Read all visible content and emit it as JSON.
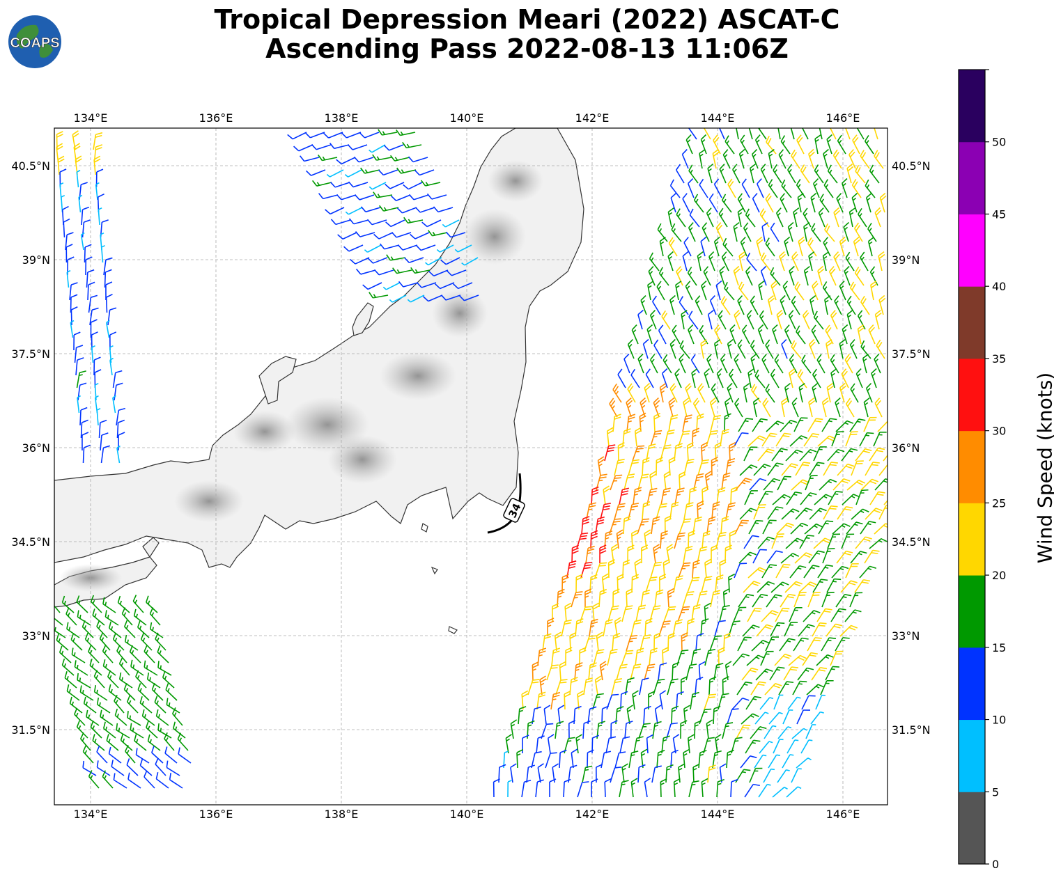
{
  "title_line1": "Tropical Depression Meari (2022) ASCAT-C",
  "title_line2": "Ascending Pass 2022-08-13 11:06Z",
  "logo_text": "COAPS",
  "lon_ticks": [
    "134°E",
    "136°E",
    "138°E",
    "140°E",
    "142°E",
    "144°E",
    "146°E"
  ],
  "lat_ticks": [
    "40.5°N",
    "39°N",
    "37.5°N",
    "36°N",
    "34.5°N",
    "33°N",
    "31.5°N"
  ],
  "contour_label": "34",
  "colorbar": {
    "title": "Wind Speed (knots)",
    "labels": [
      "0",
      "5",
      "10",
      "15",
      "20",
      "25",
      "30",
      "35",
      "40",
      "45",
      "50"
    ],
    "colors": [
      "#555555",
      "#00bfff",
      "#0033ff",
      "#009900",
      "#ffd700",
      "#ff8c00",
      "#ff1010",
      "#7f3a2a",
      "#ff00ff",
      "#8b00b3",
      "#2a005f"
    ]
  }
}
